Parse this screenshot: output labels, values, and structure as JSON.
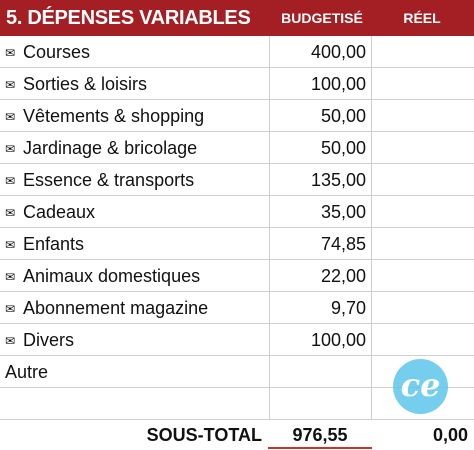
{
  "header": {
    "title": "5. DÉPENSES VARIABLES",
    "col_budget": "BUDGETISÉ",
    "col_reel": "RÉEL"
  },
  "mail_icon": "✉",
  "rows": [
    {
      "label": "Courses",
      "budget": "400,00",
      "reel": "",
      "icon": "envelope-icon"
    },
    {
      "label": "Sorties & loisirs",
      "budget": "100,00",
      "reel": "",
      "icon": "envelope-icon"
    },
    {
      "label": "Vêtements & shopping",
      "budget": "50,00",
      "reel": "",
      "icon": "envelope-icon"
    },
    {
      "label": "Jardinage & bricolage",
      "budget": "50,00",
      "reel": "",
      "icon": "envelope-icon"
    },
    {
      "label": "Essence & transports",
      "budget": "135,00",
      "reel": "",
      "icon": "envelope-icon"
    },
    {
      "label": "Cadeaux",
      "budget": "35,00",
      "reel": "",
      "icon": "envelope-icon"
    },
    {
      "label": "Enfants",
      "budget": "74,85",
      "reel": "",
      "icon": "envelope-icon"
    },
    {
      "label": "Animaux domestiques",
      "budget": "22,00",
      "reel": "",
      "icon": "envelope-icon"
    },
    {
      "label": "Abonnement magazine",
      "budget": "9,70",
      "reel": "",
      "icon": "envelope-icon"
    },
    {
      "label": "Divers",
      "budget": "100,00",
      "reel": "",
      "icon": "envelope-icon"
    },
    {
      "label": "Autre",
      "budget": "",
      "reel": ""
    },
    {
      "label": "",
      "budget": "",
      "reel": ""
    }
  ],
  "total": {
    "label": "SOUS-TOTAL",
    "budget": "976,55",
    "reel": "0,00"
  },
  "logo": {
    "text": "ce",
    "color": "#5ec6ea"
  },
  "colors": {
    "header_bg": "#a31f24",
    "total_underline": "#c0392b",
    "grid": "#cfcfcf"
  }
}
